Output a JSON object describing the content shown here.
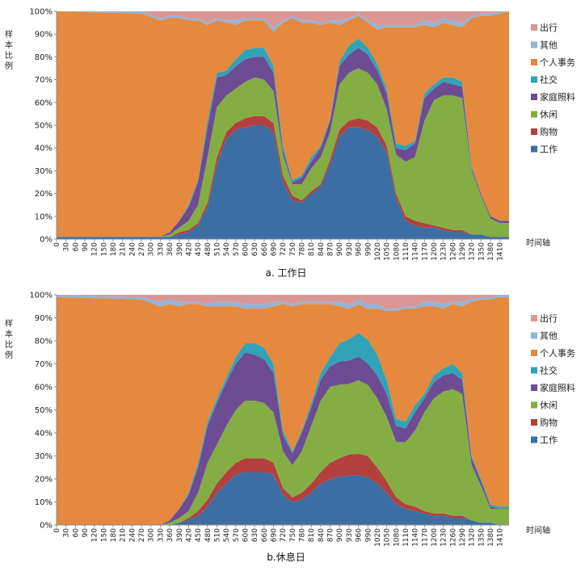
{
  "chart_data": [
    {
      "type": "area",
      "stacked": true,
      "percent": true,
      "caption": "a. 工作日",
      "ylabel": "样本比例",
      "xlabel": "时间轴",
      "y_ticks": [
        "0%",
        "10%",
        "20%",
        "30%",
        "40%",
        "50%",
        "60%",
        "70%",
        "80%",
        "90%",
        "100%"
      ],
      "x_ticks": [
        0,
        30,
        60,
        90,
        120,
        150,
        180,
        210,
        240,
        270,
        300,
        330,
        360,
        390,
        420,
        450,
        480,
        510,
        540,
        570,
        600,
        630,
        660,
        690,
        720,
        750,
        780,
        810,
        840,
        870,
        900,
        930,
        960,
        990,
        1020,
        1050,
        1080,
        1110,
        1140,
        1170,
        1200,
        1230,
        1260,
        1290,
        1320,
        1350,
        1380,
        1410
      ],
      "x": [
        0,
        270,
        330,
        360,
        390,
        420,
        450,
        480,
        510,
        540,
        570,
        600,
        630,
        660,
        690,
        720,
        750,
        780,
        810,
        840,
        870,
        900,
        930,
        960,
        990,
        1020,
        1050,
        1080,
        1110,
        1140,
        1170,
        1200,
        1230,
        1260,
        1290,
        1320,
        1350,
        1380,
        1410,
        1439
      ],
      "series_order": [
        "工作",
        "购物",
        "休闲",
        "家庭照料",
        "社交",
        "个人事务",
        "其他",
        "出行"
      ],
      "series": [
        {
          "name": "工作",
          "values": [
            1,
            1,
            1,
            1,
            2,
            3,
            6,
            14,
            33,
            44,
            48,
            49,
            50,
            50,
            47,
            25,
            17,
            16,
            20,
            23,
            33,
            45,
            49,
            49,
            48,
            45,
            38,
            18,
            8,
            6,
            5,
            5,
            4,
            3,
            3,
            2,
            2,
            1,
            1,
            1
          ]
        },
        {
          "name": "购物",
          "values": [
            0,
            0,
            0,
            0,
            1,
            1,
            1,
            2,
            3,
            3,
            3,
            4,
            4,
            4,
            4,
            3,
            2,
            1,
            1,
            1,
            2,
            3,
            3,
            4,
            4,
            4,
            3,
            2,
            2,
            2,
            2,
            1,
            1,
            1,
            1,
            0,
            0,
            0,
            0,
            0
          ]
        },
        {
          "name": "休闲",
          "values": [
            0,
            0,
            0,
            1,
            2,
            4,
            8,
            20,
            22,
            16,
            15,
            16,
            17,
            16,
            14,
            9,
            5,
            7,
            10,
            12,
            12,
            20,
            21,
            22,
            21,
            19,
            16,
            17,
            24,
            28,
            45,
            55,
            58,
            59,
            58,
            28,
            17,
            8,
            6,
            6
          ]
        },
        {
          "name": "家庭照料",
          "values": [
            0,
            0,
            0,
            1,
            3,
            6,
            10,
            13,
            13,
            9,
            10,
            10,
            9,
            10,
            8,
            2,
            1,
            3,
            3,
            4,
            5,
            8,
            8,
            9,
            8,
            6,
            7,
            3,
            5,
            6,
            10,
            5,
            6,
            5,
            5,
            1,
            1,
            1,
            1,
            1
          ]
        },
        {
          "name": "社交",
          "values": [
            0,
            0,
            0,
            0,
            0,
            1,
            1,
            3,
            2,
            2,
            3,
            4,
            4,
            4,
            3,
            2,
            1,
            1,
            2,
            1,
            1,
            2,
            4,
            4,
            3,
            3,
            2,
            2,
            2,
            1,
            2,
            2,
            2,
            3,
            2,
            1,
            0,
            0,
            0,
            0
          ]
        },
        {
          "name": "个人事务",
          "values": [
            99,
            98,
            95,
            94,
            89,
            81,
            70,
            42,
            23,
            21,
            15,
            13,
            12,
            12,
            15,
            54,
            71,
            67,
            59,
            53,
            42,
            16,
            11,
            10,
            11,
            15,
            27,
            51,
            52,
            50,
            30,
            25,
            24,
            23,
            24,
            65,
            78,
            88,
            91,
            92
          ]
        },
        {
          "name": "其他",
          "values": [
            0,
            1,
            1,
            1,
            1,
            1,
            1,
            1,
            1,
            1,
            2,
            1,
            1,
            1,
            2,
            1,
            1,
            1,
            1,
            1,
            1,
            2,
            1,
            1,
            1,
            2,
            1,
            1,
            1,
            1,
            2,
            2,
            2,
            2,
            2,
            1,
            1,
            1,
            1,
            0
          ]
        },
        {
          "name": "出行",
          "values": [
            0,
            0,
            3,
            2,
            2,
            3,
            3,
            5,
            3,
            4,
            4,
            3,
            3,
            3,
            7,
            4,
            2,
            4,
            4,
            5,
            4,
            4,
            3,
            1,
            4,
            6,
            6,
            6,
            6,
            6,
            4,
            5,
            3,
            4,
            5,
            2,
            1,
            1,
            0,
            0
          ]
        }
      ]
    },
    {
      "type": "area",
      "stacked": true,
      "percent": true,
      "caption": "b.休息日",
      "ylabel": "样本比例",
      "xlabel": "时间轴",
      "y_ticks": [
        "0%",
        "10%",
        "20%",
        "30%",
        "40%",
        "50%",
        "60%",
        "70%",
        "80%",
        "90%",
        "100%"
      ],
      "x_ticks": [
        0,
        30,
        60,
        90,
        120,
        150,
        180,
        210,
        240,
        270,
        300,
        330,
        360,
        390,
        420,
        450,
        480,
        510,
        540,
        570,
        600,
        630,
        660,
        690,
        720,
        750,
        780,
        810,
        840,
        870,
        900,
        930,
        960,
        990,
        1020,
        1050,
        1080,
        1110,
        1140,
        1170,
        1200,
        1230,
        1260,
        1290,
        1320,
        1350,
        1380,
        1410
      ],
      "x": [
        0,
        270,
        330,
        360,
        390,
        420,
        450,
        480,
        510,
        540,
        570,
        600,
        630,
        660,
        690,
        720,
        750,
        780,
        810,
        840,
        870,
        900,
        930,
        960,
        990,
        1020,
        1050,
        1080,
        1110,
        1140,
        1170,
        1200,
        1230,
        1260,
        1290,
        1320,
        1350,
        1380,
        1410,
        1439
      ],
      "series_order": [
        "工作",
        "购物",
        "休闲",
        "家庭照料",
        "社交",
        "个人事务",
        "其他",
        "出行"
      ],
      "series": [
        {
          "name": "工作",
          "values": [
            0,
            0,
            0,
            0,
            1,
            2,
            4,
            8,
            14,
            18,
            22,
            23,
            23,
            23,
            22,
            13,
            10,
            11,
            14,
            18,
            20,
            21,
            21,
            21,
            20,
            18,
            14,
            9,
            7,
            6,
            5,
            4,
            4,
            3,
            3,
            2,
            1,
            1,
            0,
            0
          ]
        },
        {
          "name": "购物",
          "values": [
            0,
            0,
            0,
            0,
            0,
            1,
            2,
            3,
            4,
            5,
            5,
            6,
            6,
            6,
            5,
            3,
            2,
            3,
            4,
            5,
            7,
            8,
            9,
            9,
            9,
            7,
            5,
            3,
            2,
            2,
            1,
            1,
            1,
            1,
            1,
            0,
            0,
            0,
            0,
            0
          ]
        },
        {
          "name": "休闲",
          "values": [
            0,
            0,
            0,
            1,
            2,
            3,
            8,
            16,
            17,
            20,
            23,
            25,
            25,
            24,
            22,
            16,
            14,
            18,
            25,
            31,
            33,
            32,
            30,
            31,
            30,
            30,
            28,
            24,
            27,
            33,
            43,
            50,
            53,
            55,
            53,
            24,
            16,
            6,
            7,
            7
          ]
        },
        {
          "name": "家庭照料",
          "values": [
            0,
            0,
            0,
            1,
            4,
            7,
            11,
            16,
            18,
            19,
            20,
            21,
            20,
            19,
            17,
            7,
            5,
            8,
            8,
            9,
            9,
            10,
            10,
            10,
            9,
            10,
            10,
            7,
            6,
            8,
            6,
            7,
            7,
            7,
            6,
            3,
            2,
            1,
            0,
            0
          ]
        },
        {
          "name": "社交",
          "values": [
            0,
            0,
            0,
            0,
            0,
            1,
            2,
            2,
            2,
            2,
            3,
            4,
            5,
            5,
            4,
            2,
            1,
            1,
            2,
            3,
            4,
            8,
            9,
            10,
            10,
            9,
            6,
            3,
            3,
            3,
            2,
            3,
            3,
            4,
            3,
            1,
            1,
            1,
            1,
            1
          ]
        },
        {
          "name": "个人事务",
          "values": [
            99,
            98,
            95,
            94,
            88,
            82,
            69,
            50,
            40,
            31,
            22,
            15,
            15,
            17,
            25,
            55,
            63,
            55,
            43,
            30,
            23,
            16,
            13,
            12,
            13,
            20,
            30,
            47,
            49,
            42,
            38,
            30,
            26,
            26,
            29,
            67,
            78,
            89,
            91,
            91
          ]
        },
        {
          "name": "其他",
          "values": [
            1,
            1,
            2,
            2,
            2,
            1,
            1,
            1,
            2,
            2,
            2,
            2,
            2,
            2,
            2,
            1,
            1,
            1,
            1,
            1,
            1,
            2,
            2,
            2,
            2,
            2,
            1,
            1,
            1,
            1,
            2,
            2,
            2,
            1,
            2,
            1,
            1,
            1,
            1,
            1
          ]
        },
        {
          "name": "出行",
          "values": [
            0,
            1,
            3,
            2,
            3,
            3,
            3,
            4,
            3,
            3,
            3,
            4,
            4,
            4,
            3,
            3,
            4,
            3,
            3,
            3,
            3,
            3,
            4,
            2,
            4,
            4,
            6,
            6,
            5,
            5,
            3,
            3,
            4,
            3,
            3,
            2,
            1,
            1,
            0,
            0
          ]
        }
      ]
    }
  ],
  "legend": {
    "items": [
      "出行",
      "其他",
      "个人事务",
      "社交",
      "家庭照料",
      "休闲",
      "购物",
      "工作"
    ],
    "colors": {
      "出行": "#d99694",
      "其他": "#95b3d7",
      "个人事务": "#e4893d",
      "社交": "#31a3b7",
      "家庭照料": "#6d4c93",
      "休闲": "#84ad43",
      "购物": "#b3403c",
      "工作": "#3c6ea3"
    }
  }
}
